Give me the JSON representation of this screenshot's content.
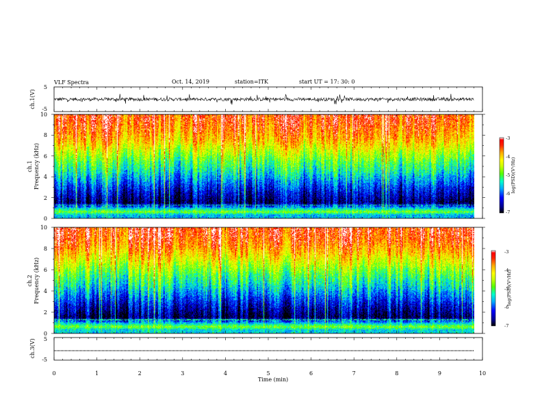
{
  "header": {
    "title": "VLF Spectra",
    "date": "Oct. 14, 2019",
    "station": "station=ITK",
    "start_ut": "start  UT  =    17: 30: 0"
  },
  "chart_data": [
    {
      "type": "line",
      "title": "",
      "ylabel": "ch.1(V)",
      "ylim": [
        -5,
        5
      ],
      "yticks": [
        "5",
        "-5"
      ],
      "xlim": [
        0,
        10
      ],
      "series": [
        {
          "values_description_omitted": true,
          "baseline": 0.0,
          "noise_amplitude": 1.6,
          "spike_amplitude": 5
        }
      ],
      "grid": false
    },
    {
      "type": "heatmap",
      "title": "",
      "ylabel": "ch.1\nFrequency  (kHz)",
      "ylim": [
        0,
        10
      ],
      "yticks": [
        "0",
        "2",
        "4",
        "6",
        "8",
        "10"
      ],
      "xlim": [
        0,
        9.85
      ],
      "color_scale": {
        "label": "log(PSD)(V²/Hz)",
        "range": [
          -7,
          -3
        ],
        "ticks": [
          "-3",
          "-4",
          "-5",
          "-6",
          "-7"
        ]
      },
      "colors": [
        "#000000",
        "#00008b",
        "#0000ff",
        "#00aaff",
        "#00ffcc",
        "#55ff00",
        "#ccff00",
        "#ffff00",
        "#ffaa00",
        "#ff4400",
        "#ff0000",
        "#ffffff"
      ],
      "band_profile_log_psd": [
        {
          "freq_khz": 0.3,
          "level": -5.6
        },
        {
          "freq_khz": 0.6,
          "level": -4.8
        },
        {
          "freq_khz": 1.5,
          "level": -6.7
        },
        {
          "freq_khz": 2.5,
          "level": -6.3
        },
        {
          "freq_khz": 3.5,
          "level": -5.8
        },
        {
          "freq_khz": 4.5,
          "level": -5.3
        },
        {
          "freq_khz": 5.5,
          "level": -4.9
        },
        {
          "freq_khz": 6.5,
          "level": -4.4
        },
        {
          "freq_khz": 7.5,
          "level": -3.9
        },
        {
          "freq_khz": 8.5,
          "level": -3.6
        },
        {
          "freq_khz": 9.5,
          "level": -3.4
        }
      ]
    },
    {
      "type": "heatmap",
      "title": "",
      "ylabel": "ch.2\nFrequency  (kHz)",
      "ylim": [
        0,
        10
      ],
      "yticks": [
        "0",
        "2",
        "4",
        "6",
        "8",
        "10"
      ],
      "xlim": [
        0,
        9.85
      ],
      "color_scale": {
        "label": "log(PSD)(V²/Hz)",
        "range": [
          -7,
          -3
        ],
        "ticks": [
          "-3",
          "-4",
          "-5",
          "-6",
          "-7"
        ]
      },
      "band_profile_log_psd": [
        {
          "freq_khz": 0.3,
          "level": -5.5
        },
        {
          "freq_khz": 0.6,
          "level": -4.8
        },
        {
          "freq_khz": 1.5,
          "level": -6.8
        },
        {
          "freq_khz": 2.5,
          "level": -6.4
        },
        {
          "freq_khz": 3.5,
          "level": -5.9
        },
        {
          "freq_khz": 4.5,
          "level": -5.4
        },
        {
          "freq_khz": 5.5,
          "level": -5.0
        },
        {
          "freq_khz": 6.5,
          "level": -4.5
        },
        {
          "freq_khz": 7.5,
          "level": -4.0
        },
        {
          "freq_khz": 8.5,
          "level": -3.6
        },
        {
          "freq_khz": 9.5,
          "level": -3.4
        }
      ]
    },
    {
      "type": "line",
      "title": "",
      "ylabel": "ch.3(V)",
      "ylim": [
        -5,
        5
      ],
      "yticks": [
        "5",
        "-5"
      ],
      "xlim": [
        0,
        10
      ],
      "xlabel": "Time  (min)",
      "xticks": [
        "0",
        "1",
        "2",
        "3",
        "4",
        "5",
        "6",
        "7",
        "8",
        "9",
        "10"
      ],
      "series": [
        {
          "baseline": -1.0,
          "constant": true
        }
      ],
      "grid": false
    }
  ]
}
